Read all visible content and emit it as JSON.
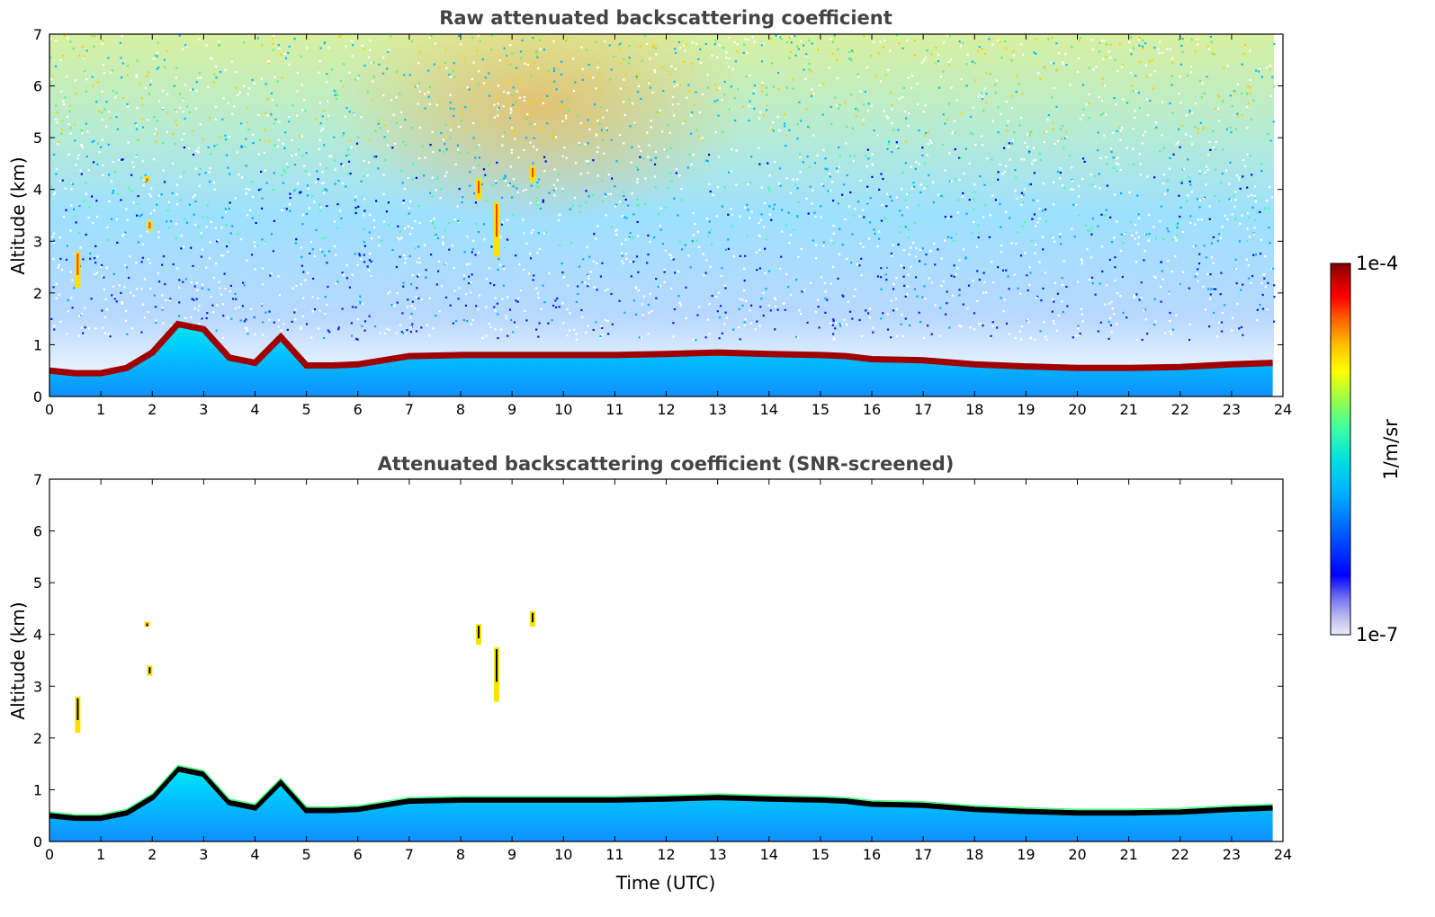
{
  "chart_data": [
    {
      "type": "heatmap",
      "title": "Raw attenuated backscattering coefficient",
      "xlabel": "",
      "ylabel": "Altitude (km)",
      "xlim": [
        0,
        24
      ],
      "ylim": [
        0,
        7
      ],
      "x_ticks": [
        "0",
        "1",
        "2",
        "3",
        "4",
        "5",
        "6",
        "7",
        "8",
        "9",
        "10",
        "11",
        "12",
        "13",
        "14",
        "15",
        "16",
        "17",
        "18",
        "19",
        "20",
        "21",
        "22",
        "23",
        "24"
      ],
      "y_ticks": [
        "0",
        "1",
        "2",
        "3",
        "4",
        "5",
        "6",
        "7"
      ],
      "data_end_x": 23.8,
      "screened": false,
      "layer_top_km": [
        [
          0,
          0.5
        ],
        [
          0.5,
          0.45
        ],
        [
          1,
          0.45
        ],
        [
          1.5,
          0.55
        ],
        [
          2,
          0.85
        ],
        [
          2.5,
          1.4
        ],
        [
          3,
          1.3
        ],
        [
          3.5,
          0.75
        ],
        [
          4,
          0.65
        ],
        [
          4.5,
          1.15
        ],
        [
          5,
          0.6
        ],
        [
          5.5,
          0.6
        ],
        [
          6,
          0.62
        ],
        [
          6.5,
          0.7
        ],
        [
          7,
          0.78
        ],
        [
          8,
          0.8
        ],
        [
          9,
          0.8
        ],
        [
          10,
          0.8
        ],
        [
          11,
          0.8
        ],
        [
          12,
          0.82
        ],
        [
          13,
          0.85
        ],
        [
          14,
          0.82
        ],
        [
          15,
          0.8
        ],
        [
          15.5,
          0.78
        ],
        [
          16,
          0.72
        ],
        [
          17,
          0.7
        ],
        [
          18,
          0.62
        ],
        [
          19,
          0.58
        ],
        [
          20,
          0.55
        ],
        [
          21,
          0.55
        ],
        [
          22,
          0.57
        ],
        [
          23,
          0.62
        ],
        [
          23.8,
          0.65
        ]
      ],
      "plumes": [
        {
          "x": 0.55,
          "y0": 2.1,
          "y1": 2.8
        },
        {
          "x": 1.95,
          "y0": 3.2,
          "y1": 3.4
        },
        {
          "x": 1.9,
          "y0": 4.15,
          "y1": 4.25
        },
        {
          "x": 8.35,
          "y0": 3.8,
          "y1": 4.2
        },
        {
          "x": 8.7,
          "y0": 2.7,
          "y1": 3.75
        },
        {
          "x": 9.4,
          "y0": 4.15,
          "y1": 4.45
        }
      ]
    },
    {
      "type": "heatmap",
      "title": "Attenuated backscattering coefficient (SNR-screened)",
      "xlabel": "Time (UTC)",
      "ylabel": "Altitude (km)",
      "xlim": [
        0,
        24
      ],
      "ylim": [
        0,
        7
      ],
      "x_ticks": [
        "0",
        "1",
        "2",
        "3",
        "4",
        "5",
        "6",
        "7",
        "8",
        "9",
        "10",
        "11",
        "12",
        "13",
        "14",
        "15",
        "16",
        "17",
        "18",
        "19",
        "20",
        "21",
        "22",
        "23",
        "24"
      ],
      "y_ticks": [
        "0",
        "1",
        "2",
        "3",
        "4",
        "5",
        "6",
        "7"
      ],
      "data_end_x": 23.8,
      "screened": true
    }
  ],
  "colorbar": {
    "label": "1/m/sr",
    "max_label": "1e-4",
    "min_label": "1e-7",
    "scale": "log",
    "colormap": [
      "#e8e8f8",
      "#b8b8f0",
      "#7070f0",
      "#0000ff",
      "#0060ff",
      "#00b0ff",
      "#00e8e8",
      "#40ffa0",
      "#a0ff40",
      "#ffff00",
      "#ffc000",
      "#ff6000",
      "#ff0000",
      "#c00000",
      "#800000"
    ]
  }
}
